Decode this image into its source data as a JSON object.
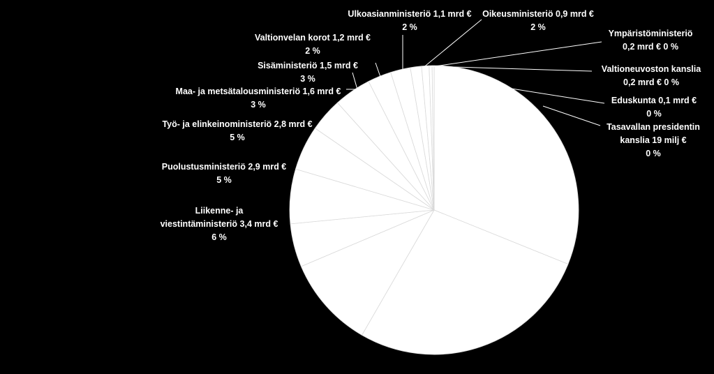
{
  "chart_data": {
    "type": "pie",
    "title": "",
    "slices": [
      {
        "label_lines": [
          "",
          ""
        ],
        "value": null,
        "percent": null
      },
      {
        "label_lines": [
          "",
          ""
        ],
        "value": null,
        "percent": null
      },
      {
        "label_lines": [
          "Liikenne- ja",
          "viestintäministeriö 3,4 mrd €",
          "6 %"
        ],
        "value": 3.4,
        "percent": 6
      },
      {
        "label_lines": [
          "Puolustusministeriö 2,9 mrd €",
          "5 %"
        ],
        "value": 2.9,
        "percent": 5
      },
      {
        "label_lines": [
          "Työ- ja elinkeinoministeriö 2,8 mrd €",
          "5 %"
        ],
        "value": 2.8,
        "percent": 5
      },
      {
        "label_lines": [
          "Maa- ja metsätalousministeriö 1,6 mrd €",
          "3 %"
        ],
        "value": 1.6,
        "percent": 3
      },
      {
        "label_lines": [
          "Sisäministeriö 1,5 mrd €",
          "3 %"
        ],
        "value": 1.5,
        "percent": 3
      },
      {
        "label_lines": [
          "Valtionvelan korot 1,2 mrd €",
          "2 %"
        ],
        "value": 1.2,
        "percent": 2
      },
      {
        "label_lines": [
          "Ulkoasianministeriö 1,1 mrd €",
          "2 %"
        ],
        "value": 1.1,
        "percent": 2
      },
      {
        "label_lines": [
          "Oikeusministeriö 0,9 mrd €",
          "2 %"
        ],
        "value": 0.9,
        "percent": 2
      },
      {
        "label_lines": [
          "Ympäristöministeriö",
          "0,2 mrd € 0 %"
        ],
        "value": 0.2,
        "percent": 0
      },
      {
        "label_lines": [
          "Valtioneuvoston kanslia",
          "0,2 mrd € 0 %"
        ],
        "value": 0.2,
        "percent": 0
      },
      {
        "label_lines": [
          "Eduskunta 0,1 mrd €",
          "0 %"
        ],
        "value": 0.1,
        "percent": 0
      },
      {
        "label_lines": [
          "Tasavallan presidentin",
          "kanslia 19 milj €",
          "0 %"
        ],
        "value": 0.019,
        "percent": 0
      }
    ],
    "slice_fill": "#ffffff",
    "slice_stroke": "#d9d9d9",
    "leader_color": "#ffffff",
    "background": "#000000",
    "text_color": "#ffffff"
  }
}
